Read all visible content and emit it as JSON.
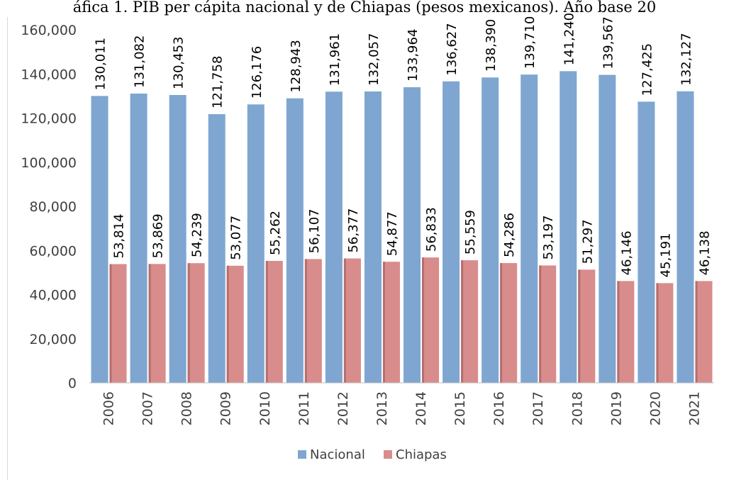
{
  "chart_data": {
    "type": "bar",
    "title": "áfica 1. PIB per cápita nacional y de Chiapas (pesos mexicanos). Año base 20",
    "categories": [
      "2006",
      "2007",
      "2008",
      "2009",
      "2010",
      "2011",
      "2012",
      "2013",
      "2014",
      "2015",
      "2016",
      "2017",
      "2018",
      "2019",
      "2020",
      "2021"
    ],
    "series": [
      {
        "name": "Nacional",
        "color": "#7ea6d1",
        "values": [
          130011,
          131082,
          130453,
          121758,
          126176,
          128943,
          131961,
          132057,
          133964,
          136627,
          138390,
          139710,
          141240,
          139567,
          127425,
          132127
        ],
        "labels": [
          "130,011",
          "131,082",
          "130,453",
          "121,758",
          "126,176",
          "128,943",
          "131,961",
          "132,057",
          "133,964",
          "136,627",
          "138,390",
          "139,710",
          "141,240",
          "139,567",
          "127,425",
          "132,127"
        ]
      },
      {
        "name": "Chiapas",
        "color": "#d98c8c",
        "values": [
          53814,
          53869,
          54239,
          53077,
          55262,
          56107,
          56377,
          54877,
          56833,
          55559,
          54286,
          53197,
          51297,
          46146,
          45191,
          46138
        ],
        "labels": [
          "53,814",
          "53,869",
          "54,239",
          "53,077",
          "55,262",
          "56,107",
          "56,377",
          "54,877",
          "56,833",
          "55,559",
          "54,286",
          "53,197",
          "51,297",
          "46,146",
          "45,191",
          "46,138"
        ]
      }
    ],
    "y_ticks": [
      "0",
      "20,000",
      "40,000",
      "60,000",
      "80,000",
      "100,000",
      "120,000",
      "140,000",
      "160,000"
    ],
    "ylim": [
      0,
      160000
    ],
    "grid": false,
    "legend": "bottom"
  }
}
